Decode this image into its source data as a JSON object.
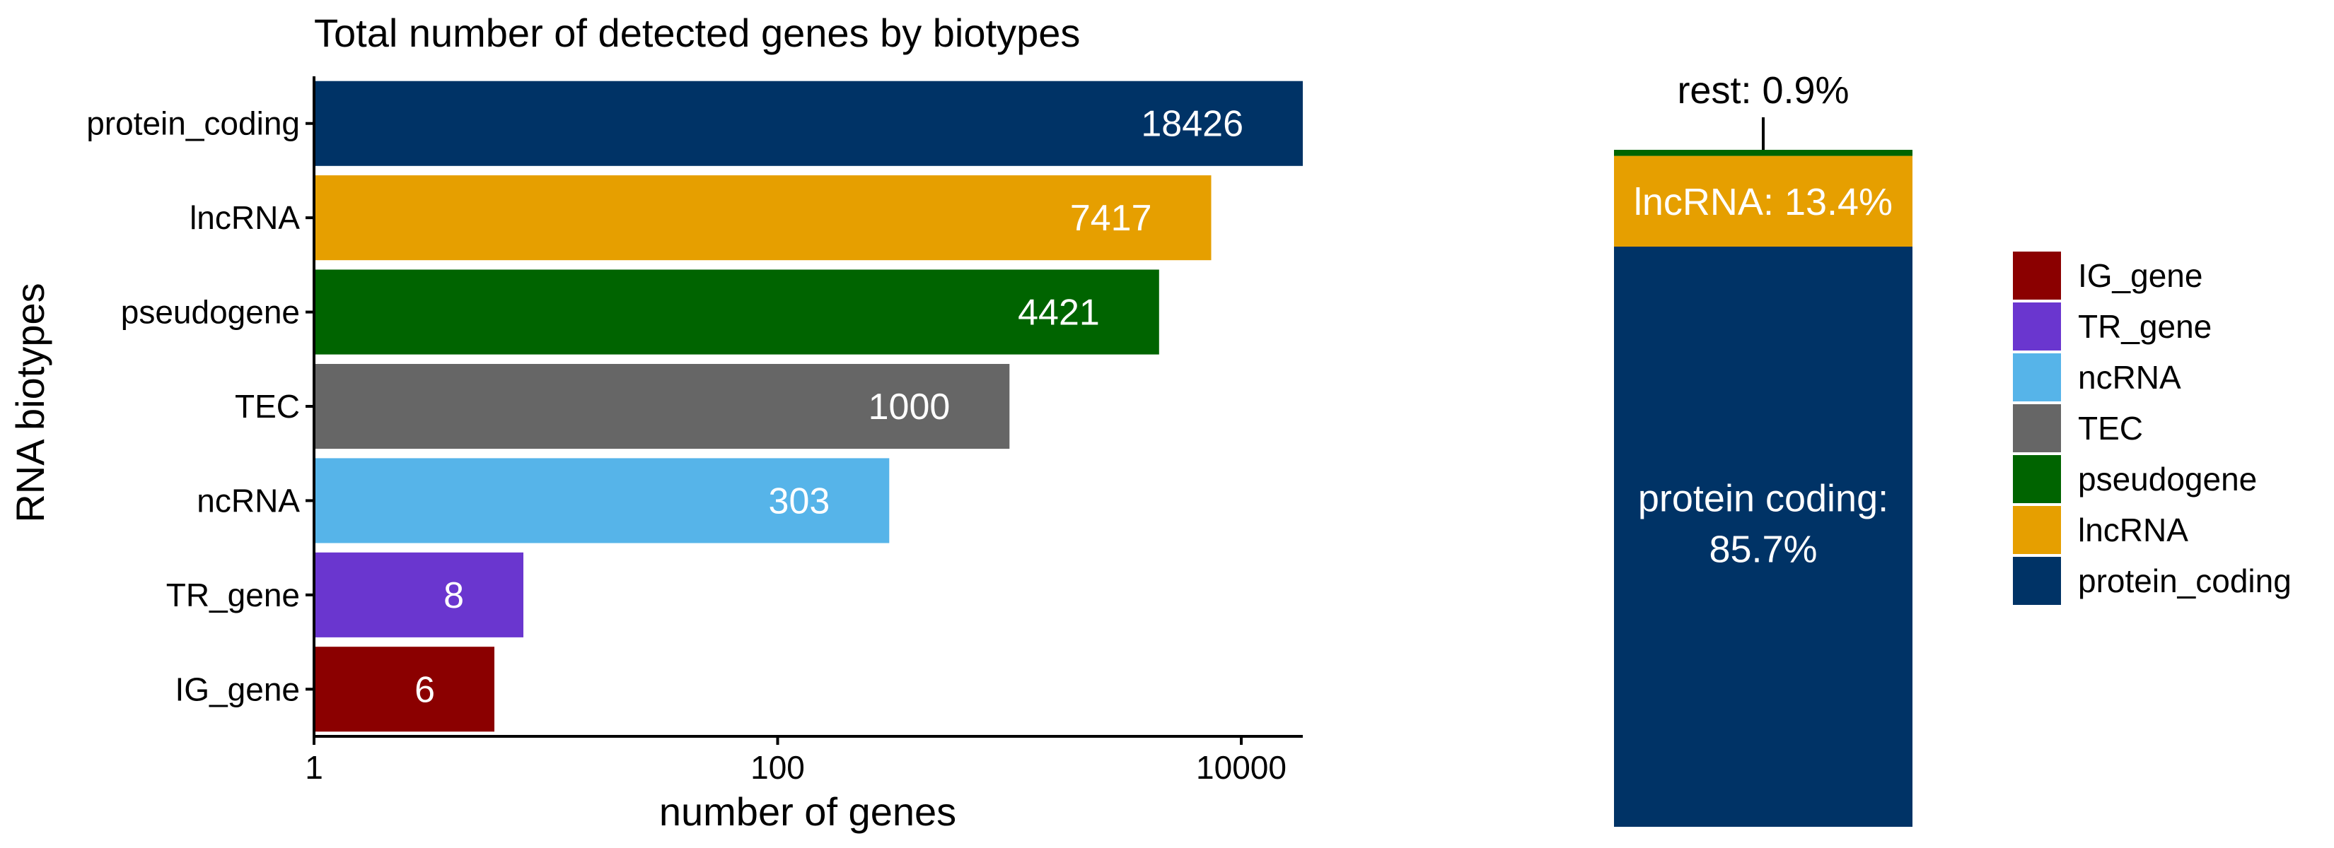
{
  "chart_data": [
    {
      "type": "bar",
      "orientation": "horizontal",
      "title": "Total number of detected genes by biotypes",
      "xlabel": "number of genes",
      "ylabel": "RNA biotypes",
      "x_scale": "log10",
      "xlim": [
        1,
        18426
      ],
      "x_ticks": [
        1,
        100,
        10000
      ],
      "x_tick_labels": [
        "1",
        "100",
        "10000"
      ],
      "categories": [
        "protein_coding",
        "lncRNA",
        "pseudogene",
        "TEC",
        "ncRNA",
        "TR_gene",
        "IG_gene"
      ],
      "values": [
        18426,
        7417,
        4421,
        1000,
        303,
        8,
        6
      ],
      "value_labels": [
        "18426",
        "7417",
        "4421",
        "1000",
        "303",
        "8",
        "6"
      ],
      "colors": [
        "#003366",
        "#E69F00",
        "#006400",
        "#666666",
        "#56B4E9",
        "#6A36CF",
        "#8B0000"
      ],
      "grid": false
    },
    {
      "type": "bar",
      "stacked": true,
      "normalized": true,
      "segments": [
        {
          "name": "protein_coding",
          "value": 85.7,
          "color": "#003366"
        },
        {
          "name": "lncRNA",
          "value": 13.4,
          "color": "#E69F00"
        },
        {
          "name": "pseudogene",
          "value": 0.9,
          "color": "#006400"
        }
      ],
      "labels": {
        "protein_coding_line1": "protein coding:",
        "protein_coding_line2": "85.7%",
        "lncRNA": "lncRNA: 13.4%",
        "rest": "rest: 0.9%"
      },
      "legend": {
        "position": "right",
        "entries": [
          {
            "name": "IG_gene",
            "color": "#8B0000"
          },
          {
            "name": "TR_gene",
            "color": "#6A36CF"
          },
          {
            "name": "ncRNA",
            "color": "#56B4E9"
          },
          {
            "name": "TEC",
            "color": "#666666"
          },
          {
            "name": "pseudogene",
            "color": "#006400"
          },
          {
            "name": "lncRNA",
            "color": "#E69F00"
          },
          {
            "name": "protein_coding",
            "color": "#003366"
          }
        ]
      }
    }
  ]
}
